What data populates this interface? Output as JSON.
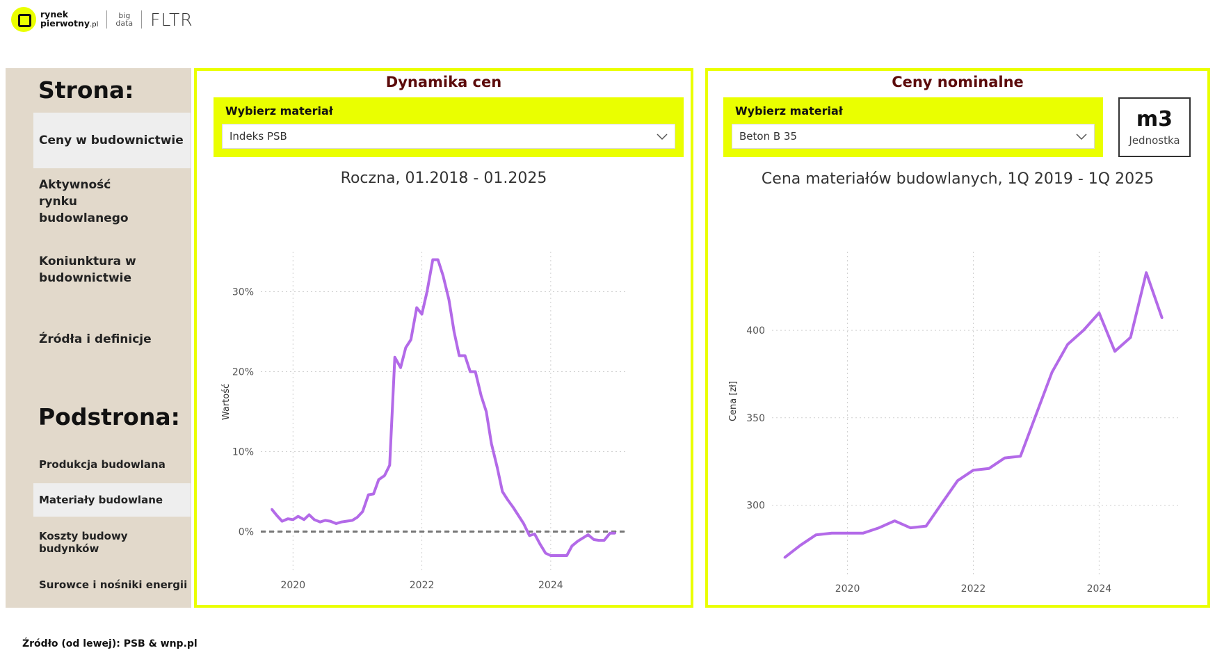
{
  "header": {
    "brand_line1": "rynek",
    "brand_line2": "pierwotny",
    "brand_domain": ".pl",
    "bigdata_line1": "big",
    "bigdata_line2": "data",
    "fltr": "FLTR"
  },
  "sidebar": {
    "page_heading": "Strona:",
    "pages": [
      {
        "label": "Ceny w budownictwie",
        "active": true
      },
      {
        "label": "Aktywność rynku budowlanego",
        "active": false
      },
      {
        "label": "Koniunktura w budownictwie",
        "active": false
      },
      {
        "label": "Źródła i definicje",
        "active": false
      }
    ],
    "subpage_heading": "Podstrona:",
    "subpages": [
      {
        "label": "Produkcja budowlana",
        "active": false
      },
      {
        "label": "Materiały budowlane",
        "active": true
      },
      {
        "label": "Koszty budowy budynków",
        "active": false
      },
      {
        "label": "Surowce i nośniki energii",
        "active": false
      }
    ]
  },
  "left_panel": {
    "title": "Dynamika cen",
    "slicer_label": "Wybierz materiał",
    "selected": "Indeks PSB",
    "chart_title": "Roczna, 01.2018 - 01.2025",
    "y_axis_title": "Wartość"
  },
  "right_panel": {
    "title": "Ceny nominalne",
    "slicer_label": "Wybierz materiał",
    "selected": "Beton B 35",
    "unit_value": "m3",
    "unit_label": "Jednostka",
    "chart_title": "Cena materiałów budowlanych, 1Q 2019 - 1Q 2025",
    "y_axis_title": "Cena [zł]"
  },
  "colors": {
    "accent": "#eaff00",
    "line": "#b36ae8",
    "title": "#5c0b0b",
    "sidebar_bg": "#e2d9cb"
  },
  "icons": {
    "dropdown": "chevron-down-icon",
    "logo": "rynekpierwotny-logo"
  },
  "chart_data": [
    {
      "type": "line",
      "title": "Roczna, 01.2018 - 01.2025",
      "xlabel": "",
      "ylabel": "Wartość",
      "x_ticks": [
        "2020",
        "2022",
        "2024"
      ],
      "y_ticks": [
        "0%",
        "10%",
        "20%",
        "30%"
      ],
      "ylim": [
        -0.05,
        0.35
      ],
      "xlim": [
        2019.5,
        2025.2
      ],
      "reference_line": 0,
      "grid": true,
      "series": [
        {
          "x": [
            2019.67,
            2019.75,
            2019.83,
            2019.92,
            2020.0,
            2020.08,
            2020.17,
            2020.25,
            2020.33,
            2020.42,
            2020.5,
            2020.58,
            2020.67,
            2020.75,
            2020.83,
            2020.92,
            2021.0,
            2021.08,
            2021.17,
            2021.25,
            2021.33,
            2021.42,
            2021.5,
            2021.58,
            2021.67,
            2021.75,
            2021.83,
            2021.92,
            2022.0,
            2022.08,
            2022.17,
            2022.25,
            2022.33,
            2022.42,
            2022.5,
            2022.58,
            2022.67,
            2022.75,
            2022.83,
            2022.92,
            2023.0,
            2023.08,
            2023.17,
            2023.25,
            2023.33,
            2023.42,
            2023.5,
            2023.58,
            2023.67,
            2023.75,
            2023.83,
            2023.92,
            2024.0,
            2024.08,
            2024.17,
            2024.25,
            2024.33,
            2024.42,
            2024.5,
            2024.58,
            2024.67,
            2024.75,
            2024.83,
            2024.92,
            2025.0
          ],
          "values": [
            0.028,
            0.02,
            0.013,
            0.016,
            0.015,
            0.019,
            0.015,
            0.021,
            0.015,
            0.012,
            0.014,
            0.013,
            0.01,
            0.012,
            0.013,
            0.014,
            0.018,
            0.025,
            0.046,
            0.047,
            0.065,
            0.07,
            0.083,
            0.218,
            0.205,
            0.23,
            0.24,
            0.28,
            0.272,
            0.3,
            0.34,
            0.34,
            0.32,
            0.29,
            0.25,
            0.22,
            0.22,
            0.2,
            0.2,
            0.17,
            0.15,
            0.11,
            0.08,
            0.05,
            0.04,
            0.03,
            0.02,
            0.01,
            -0.005,
            -0.003,
            -0.015,
            -0.027,
            -0.03,
            -0.03,
            -0.03,
            -0.03,
            -0.018,
            -0.012,
            -0.008,
            -0.004,
            -0.01,
            -0.011,
            -0.011,
            -0.002,
            -0.002
          ]
        }
      ]
    },
    {
      "type": "line",
      "title": "Cena materiałów budowlanych, 1Q 2019 - 1Q 2025",
      "xlabel": "",
      "ylabel": "Cena [zł]",
      "x_ticks": [
        "2020",
        "2022",
        "2024"
      ],
      "y_ticks": [
        "300",
        "350",
        "400"
      ],
      "ylim": [
        260,
        445
      ],
      "xlim": [
        2018.8,
        2025.3
      ],
      "grid": true,
      "series": [
        {
          "x": [
            2019.0,
            2019.25,
            2019.5,
            2019.75,
            2020.0,
            2020.25,
            2020.5,
            2020.75,
            2021.0,
            2021.25,
            2021.5,
            2021.75,
            2022.0,
            2022.25,
            2022.5,
            2022.75,
            2023.0,
            2023.25,
            2023.5,
            2023.75,
            2024.0,
            2024.25,
            2024.5,
            2024.75,
            2025.0
          ],
          "values": [
            270,
            277,
            283,
            284,
            284,
            284,
            287,
            291,
            287,
            288,
            301,
            314,
            320,
            321,
            327,
            328,
            352,
            376,
            392,
            400,
            410,
            388,
            396,
            433,
            407
          ]
        }
      ]
    }
  ],
  "footer": "Źródło (od lewej): PSB & wnp.pl"
}
